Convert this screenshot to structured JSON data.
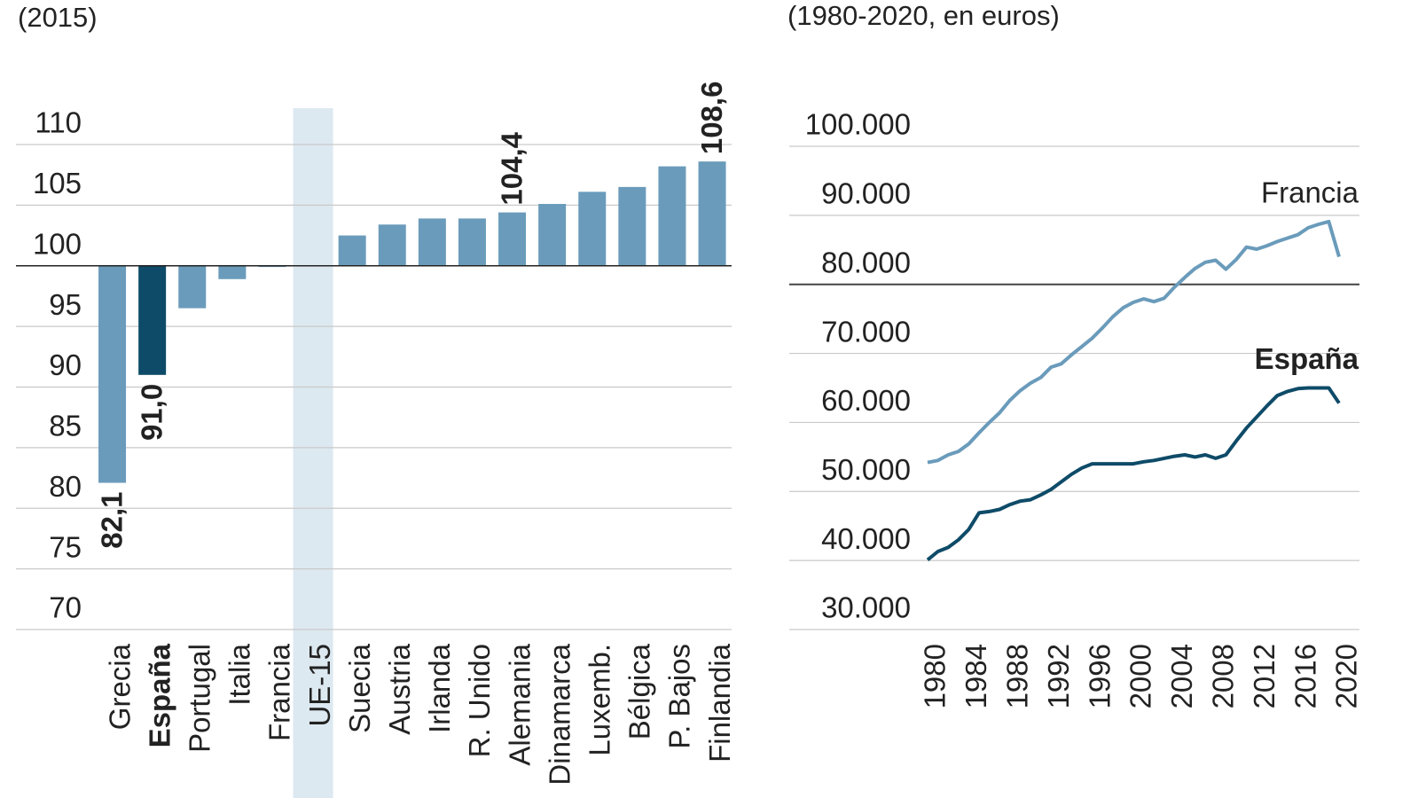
{
  "chart_data": [
    {
      "type": "bar",
      "subtitle": "(2015)",
      "categories": [
        "Grecia",
        "España",
        "Portugal",
        "Italia",
        "Francia",
        "UE-15",
        "Suecia",
        "Austria",
        "Irlanda",
        "R. Unido",
        "Alemania",
        "Dinamarca",
        "Luxemb.",
        "Bélgica",
        "P. Bajos",
        "Finlandia"
      ],
      "values": [
        82.1,
        91.0,
        96.5,
        98.9,
        99.9,
        null,
        102.5,
        103.4,
        103.9,
        103.9,
        104.4,
        105.1,
        106.1,
        106.5,
        108.2,
        108.6
      ],
      "value_labels": [
        "82,1",
        "91,0",
        null,
        null,
        null,
        null,
        null,
        null,
        null,
        null,
        "104,4",
        null,
        null,
        null,
        null,
        "108,6"
      ],
      "colors": [
        "#6a9bbb",
        "#0e4b68",
        "#6a9bbb",
        "#6a9bbb",
        "#6a9bbb",
        "#6a9bbb",
        "#6a9bbb",
        "#6a9bbb",
        "#6a9bbb",
        "#6a9bbb",
        "#6a9bbb",
        "#6a9bbb",
        "#6a9bbb",
        "#6a9bbb",
        "#6a9bbb",
        "#6a9bbb"
      ],
      "highlight": 5,
      "highlight_color": "#dde9f1",
      "emphasis": 1,
      "baseline": 100,
      "ylim": [
        70,
        110
      ],
      "yticks": [
        70,
        75,
        80,
        85,
        90,
        95,
        100,
        105,
        110
      ],
      "grid": true
    },
    {
      "type": "line",
      "subtitle": "(1980-2020, en euros)",
      "x": [
        1980,
        1981,
        1982,
        1983,
        1984,
        1985,
        1986,
        1987,
        1988,
        1989,
        1990,
        1991,
        1992,
        1993,
        1994,
        1995,
        1996,
        1997,
        1998,
        1999,
        2000,
        2001,
        2002,
        2003,
        2004,
        2005,
        2006,
        2007,
        2008,
        2009,
        2010,
        2011,
        2012,
        2013,
        2014,
        2015,
        2016,
        2017,
        2018,
        2019,
        2020
      ],
      "series": [
        {
          "name": "Francia",
          "color": "#6a9bbb",
          "bold": false,
          "values": [
            54200,
            54500,
            55300,
            55800,
            56900,
            58500,
            60000,
            61400,
            63200,
            64600,
            65700,
            66500,
            68000,
            68500,
            69800,
            71000,
            72200,
            73700,
            75300,
            76600,
            77400,
            77900,
            77500,
            78000,
            79600,
            81000,
            82300,
            83200,
            83500,
            82200,
            83600,
            85400,
            85100,
            85600,
            86200,
            86700,
            87200,
            88200,
            88700,
            89100,
            84000
          ]
        },
        {
          "name": "España",
          "color": "#0e4b68",
          "bold": true,
          "values": [
            40100,
            41300,
            41900,
            43000,
            44500,
            46900,
            47100,
            47400,
            48100,
            48600,
            48800,
            49500,
            50300,
            51400,
            52500,
            53400,
            54000,
            54000,
            54000,
            54000,
            54000,
            54300,
            54500,
            54800,
            55100,
            55300,
            55000,
            55300,
            54800,
            55300,
            57300,
            59200,
            60800,
            62400,
            63900,
            64500,
            64900,
            65000,
            65000,
            65000,
            62800
          ]
        }
      ],
      "xlim": [
        1980,
        2020
      ],
      "xticks": [
        1980,
        1984,
        1988,
        1992,
        1996,
        2000,
        2004,
        2008,
        2012,
        2016,
        2020
      ],
      "ylim": [
        30000,
        100000
      ],
      "yticks": [
        {
          "value": 30000,
          "label": "30.000"
        },
        {
          "value": 40000,
          "label": "40.000"
        },
        {
          "value": 50000,
          "label": "50.000"
        },
        {
          "value": 60000,
          "label": "60.000"
        },
        {
          "value": 70000,
          "label": "70.000"
        },
        {
          "value": 80000,
          "label": "80.000"
        },
        {
          "value": 90000,
          "label": "90.000"
        },
        {
          "value": 100000,
          "label": "100.000"
        }
      ],
      "reference_line": 80000,
      "grid": true
    }
  ]
}
